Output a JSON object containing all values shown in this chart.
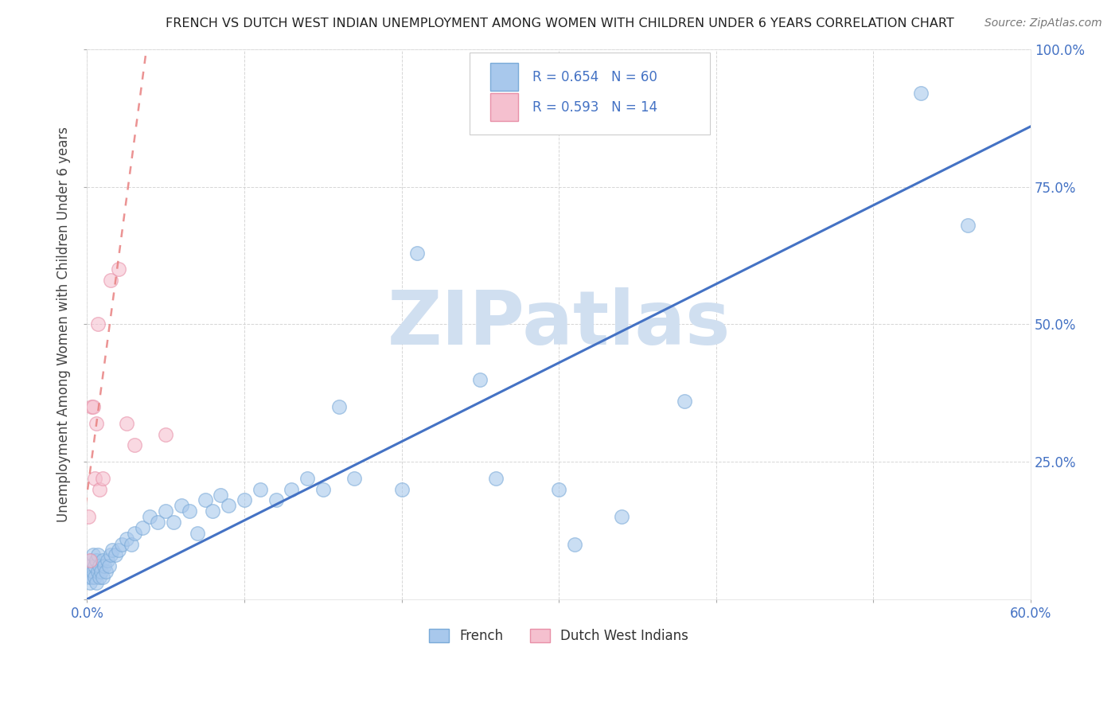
{
  "title": "FRENCH VS DUTCH WEST INDIAN UNEMPLOYMENT AMONG WOMEN WITH CHILDREN UNDER 6 YEARS CORRELATION CHART",
  "source": "Source: ZipAtlas.com",
  "ylabel": "Unemployment Among Women with Children Under 6 years",
  "xlim": [
    0.0,
    0.6
  ],
  "ylim": [
    0.0,
    1.0
  ],
  "french_R": 0.654,
  "french_N": 60,
  "dutch_R": 0.593,
  "dutch_N": 14,
  "french_color": "#A8C8EC",
  "french_edge_color": "#7AAAD8",
  "dutch_color": "#F5C0CF",
  "dutch_edge_color": "#E890A8",
  "french_line_color": "#4472C4",
  "dutch_line_color": "#E88080",
  "watermark_color": "#D0DFF0",
  "title_color": "#222222",
  "source_color": "#777777",
  "tick_color": "#4472C4",
  "ylabel_color": "#444444",
  "legend_text_color": "#4472C4",
  "french_x": [
    0.001,
    0.002,
    0.002,
    0.003,
    0.003,
    0.004,
    0.004,
    0.005,
    0.005,
    0.006,
    0.006,
    0.007,
    0.007,
    0.008,
    0.008,
    0.009,
    0.01,
    0.01,
    0.011,
    0.012,
    0.013,
    0.014,
    0.015,
    0.016,
    0.018,
    0.02,
    0.022,
    0.025,
    0.028,
    0.03,
    0.035,
    0.04,
    0.045,
    0.05,
    0.055,
    0.06,
    0.065,
    0.07,
    0.075,
    0.08,
    0.085,
    0.09,
    0.1,
    0.11,
    0.12,
    0.13,
    0.14,
    0.15,
    0.16,
    0.17,
    0.2,
    0.21,
    0.25,
    0.26,
    0.3,
    0.31,
    0.34,
    0.38,
    0.53,
    0.56
  ],
  "french_y": [
    0.04,
    0.03,
    0.06,
    0.04,
    0.07,
    0.05,
    0.08,
    0.04,
    0.06,
    0.03,
    0.07,
    0.05,
    0.08,
    0.04,
    0.06,
    0.05,
    0.04,
    0.07,
    0.06,
    0.05,
    0.07,
    0.06,
    0.08,
    0.09,
    0.08,
    0.09,
    0.1,
    0.11,
    0.1,
    0.12,
    0.13,
    0.15,
    0.14,
    0.16,
    0.14,
    0.17,
    0.16,
    0.12,
    0.18,
    0.16,
    0.19,
    0.17,
    0.18,
    0.2,
    0.18,
    0.2,
    0.22,
    0.2,
    0.35,
    0.22,
    0.2,
    0.63,
    0.4,
    0.22,
    0.2,
    0.1,
    0.15,
    0.36,
    0.92,
    0.68
  ],
  "dutch_x": [
    0.001,
    0.002,
    0.003,
    0.004,
    0.005,
    0.006,
    0.007,
    0.008,
    0.01,
    0.015,
    0.02,
    0.025,
    0.03,
    0.05
  ],
  "dutch_y": [
    0.15,
    0.07,
    0.35,
    0.35,
    0.22,
    0.32,
    0.5,
    0.2,
    0.22,
    0.58,
    0.6,
    0.32,
    0.28,
    0.3
  ],
  "french_line_x0": 0.0,
  "french_line_y0": 0.0,
  "french_line_x1": 0.6,
  "french_line_y1": 0.86,
  "dutch_line_x0": 0.006,
  "dutch_line_y0": 0.32,
  "dutch_line_x1": 0.02,
  "dutch_line_y1": 0.62
}
